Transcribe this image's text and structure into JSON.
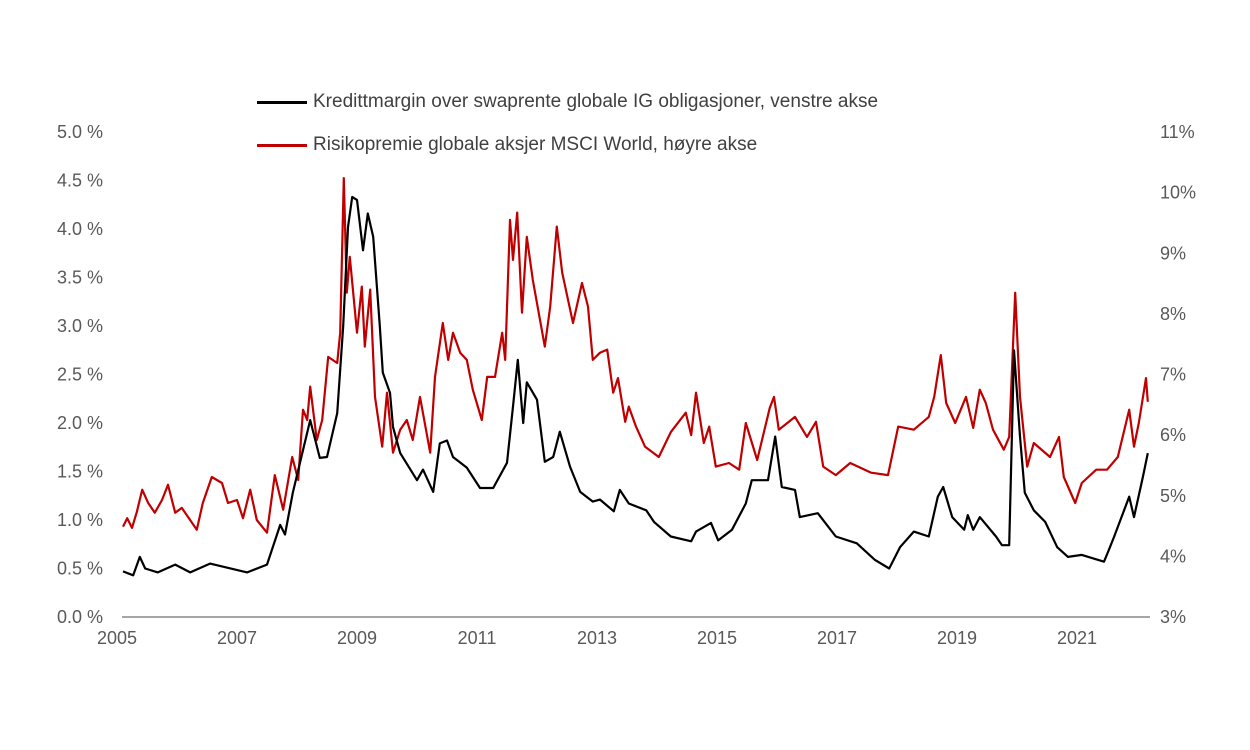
{
  "chart_data": {
    "type": "line",
    "title": "",
    "xlabel": "",
    "xlim": [
      2005,
      2022.2
    ],
    "x_ticks": [
      "2005",
      "2007",
      "2009",
      "2011",
      "2013",
      "2015",
      "2017",
      "2019",
      "2021"
    ],
    "y_left": {
      "ylim": [
        0,
        5
      ],
      "ticks": [
        "0.0 %",
        "0.5 %",
        "1.0 %",
        "1.5 %",
        "2.0 %",
        "2.5 %",
        "3.0 %",
        "3.5 %",
        "4.0 %",
        "4.5 %",
        "5.0 %"
      ]
    },
    "y_right": {
      "ylim": [
        3,
        11
      ],
      "ticks": [
        "3%",
        "4%",
        "5%",
        "6%",
        "7%",
        "8%",
        "9%",
        "10%",
        "11%"
      ]
    },
    "grid": false,
    "legend_placement": "top-center",
    "series": [
      {
        "name": "Kredittmargin over swaprente globale IG obligasjoner, venstre akse",
        "axis": "left",
        "color": "#000000",
        "x": [
          2005.1,
          2005.27,
          2005.38,
          2005.47,
          2005.68,
          2005.97,
          2006.22,
          2006.55,
          2007.17,
          2007.5,
          2007.72,
          2007.8,
          2007.93,
          2008.22,
          2008.38,
          2008.5,
          2008.67,
          2008.77,
          2008.85,
          2008.92,
          2009.0,
          2009.1,
          2009.18,
          2009.27,
          2009.38,
          2009.43,
          2009.55,
          2009.6,
          2009.72,
          2010.0,
          2010.1,
          2010.27,
          2010.38,
          2010.5,
          2010.6,
          2010.83,
          2011.05,
          2011.27,
          2011.5,
          2011.6,
          2011.68,
          2011.77,
          2011.83,
          2012.0,
          2012.13,
          2012.27,
          2012.38,
          2012.55,
          2012.72,
          2012.93,
          2013.05,
          2013.28,
          2013.38,
          2013.53,
          2013.82,
          2013.95,
          2014.23,
          2014.57,
          2014.65,
          2014.9,
          2015.02,
          2015.25,
          2015.48,
          2015.58,
          2015.85,
          2015.97,
          2016.08,
          2016.3,
          2016.38,
          2016.68,
          2016.98,
          2017.33,
          2017.63,
          2017.87,
          2018.05,
          2018.28,
          2018.53,
          2018.68,
          2018.77,
          2018.92,
          2019.12,
          2019.18,
          2019.27,
          2019.38,
          2019.65,
          2019.75,
          2019.87,
          2019.95,
          2020.05,
          2020.13,
          2020.28,
          2020.47,
          2020.67,
          2020.85,
          2021.08,
          2021.45,
          2021.53,
          2021.62,
          2021.87,
          2021.95,
          2022.1,
          2022.18
        ],
        "values": [
          0.47,
          0.43,
          0.62,
          0.5,
          0.46,
          0.54,
          0.46,
          0.55,
          0.46,
          0.54,
          0.95,
          0.85,
          1.28,
          2.03,
          1.64,
          1.65,
          2.1,
          3.0,
          4.02,
          4.33,
          4.3,
          3.78,
          4.16,
          3.92,
          3.0,
          2.52,
          2.31,
          1.96,
          1.69,
          1.41,
          1.52,
          1.29,
          1.79,
          1.82,
          1.65,
          1.54,
          1.33,
          1.33,
          1.59,
          2.17,
          2.65,
          2.0,
          2.42,
          2.24,
          1.6,
          1.65,
          1.91,
          1.55,
          1.29,
          1.19,
          1.21,
          1.09,
          1.31,
          1.17,
          1.1,
          0.98,
          0.83,
          0.78,
          0.88,
          0.97,
          0.79,
          0.9,
          1.17,
          1.41,
          1.41,
          1.86,
          1.34,
          1.31,
          1.03,
          1.07,
          0.83,
          0.76,
          0.59,
          0.5,
          0.72,
          0.88,
          0.83,
          1.24,
          1.34,
          1.03,
          0.9,
          1.05,
          0.9,
          1.03,
          0.83,
          0.74,
          0.74,
          2.75,
          1.86,
          1.28,
          1.1,
          0.98,
          0.72,
          0.62,
          0.64,
          0.57,
          0.69,
          0.83,
          1.24,
          1.03,
          1.45,
          1.69
        ]
      },
      {
        "name": "Risikopremie globale aksjer MSCI World, høyre akse",
        "axis": "right",
        "color": "#C00000",
        "x": [
          2005.1,
          2005.17,
          2005.25,
          2005.33,
          2005.42,
          2005.52,
          2005.63,
          2005.75,
          2005.85,
          2005.97,
          2006.08,
          2006.33,
          2006.43,
          2006.58,
          2006.75,
          2006.85,
          2007.0,
          2007.1,
          2007.22,
          2007.33,
          2007.5,
          2007.63,
          2007.77,
          2007.92,
          2008.02,
          2008.1,
          2008.17,
          2008.22,
          2008.33,
          2008.42,
          2008.52,
          2008.67,
          2008.72,
          2008.78,
          2008.83,
          2008.88,
          2009.0,
          2009.08,
          2009.13,
          2009.22,
          2009.3,
          2009.42,
          2009.5,
          2009.6,
          2009.72,
          2009.83,
          2009.93,
          2010.05,
          2010.22,
          2010.3,
          2010.43,
          2010.52,
          2010.6,
          2010.72,
          2010.83,
          2010.93,
          2011.08,
          2011.17,
          2011.3,
          2011.42,
          2011.47,
          2011.55,
          2011.6,
          2011.67,
          2011.75,
          2011.83,
          2011.93,
          2012.13,
          2012.22,
          2012.33,
          2012.42,
          2012.6,
          2012.75,
          2012.85,
          2012.93,
          2013.05,
          2013.17,
          2013.27,
          2013.35,
          2013.47,
          2013.53,
          2013.65,
          2013.8,
          2014.03,
          2014.23,
          2014.48,
          2014.57,
          2014.65,
          2014.78,
          2014.87,
          2014.98,
          2015.2,
          2015.37,
          2015.48,
          2015.67,
          2015.88,
          2015.95,
          2016.03,
          2016.3,
          2016.5,
          2016.65,
          2016.77,
          2016.98,
          2017.22,
          2017.57,
          2017.85,
          2018.02,
          2018.28,
          2018.53,
          2018.62,
          2018.73,
          2018.82,
          2018.97,
          2019.15,
          2019.27,
          2019.38,
          2019.48,
          2019.6,
          2019.78,
          2019.87,
          2019.97,
          2020.05,
          2020.17,
          2020.28,
          2020.55,
          2020.7,
          2020.78,
          2020.97,
          2021.08,
          2021.32,
          2021.5,
          2021.68,
          2021.87,
          2021.95,
          2022.03,
          2022.15,
          2022.18
        ],
        "values": [
          4.49,
          4.63,
          4.47,
          4.73,
          5.1,
          4.88,
          4.72,
          4.93,
          5.18,
          4.72,
          4.8,
          4.44,
          4.88,
          5.31,
          5.21,
          4.88,
          4.93,
          4.63,
          5.1,
          4.6,
          4.39,
          5.34,
          4.77,
          5.64,
          5.26,
          6.42,
          6.25,
          6.8,
          5.92,
          6.25,
          7.29,
          7.19,
          7.69,
          10.24,
          8.35,
          8.94,
          7.69,
          8.45,
          7.46,
          8.4,
          6.63,
          5.81,
          6.7,
          5.71,
          6.09,
          6.25,
          5.92,
          6.63,
          5.71,
          6.96,
          7.85,
          7.24,
          7.69,
          7.36,
          7.24,
          6.75,
          6.25,
          6.96,
          6.96,
          7.69,
          7.24,
          9.55,
          8.89,
          9.67,
          8.02,
          9.27,
          8.56,
          7.46,
          8.12,
          9.44,
          8.68,
          7.85,
          8.51,
          8.12,
          7.24,
          7.36,
          7.41,
          6.7,
          6.94,
          6.22,
          6.47,
          6.14,
          5.81,
          5.64,
          6.05,
          6.37,
          6.0,
          6.7,
          5.87,
          6.14,
          5.48,
          5.54,
          5.43,
          6.2,
          5.59,
          6.45,
          6.63,
          6.09,
          6.3,
          5.97,
          6.22,
          5.48,
          5.34,
          5.54,
          5.38,
          5.34,
          6.14,
          6.09,
          6.3,
          6.63,
          7.32,
          6.53,
          6.2,
          6.63,
          6.12,
          6.75,
          6.53,
          6.09,
          5.76,
          5.97,
          8.35,
          6.63,
          5.48,
          5.87,
          5.64,
          5.97,
          5.31,
          4.88,
          5.21,
          5.43,
          5.43,
          5.64,
          6.42,
          5.81,
          6.2,
          6.94,
          6.55
        ]
      }
    ]
  }
}
